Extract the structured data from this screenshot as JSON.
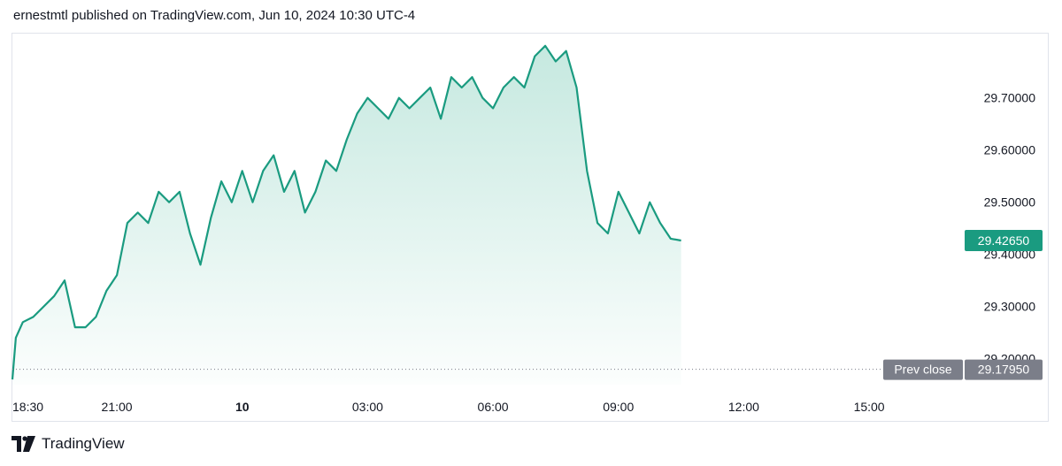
{
  "header": {
    "text": "ernestmtl published on TradingView.com, Jun 10, 2024 10:30 UTC-4"
  },
  "footer": {
    "brand": "TradingView"
  },
  "colors": {
    "line": "#1a9b80",
    "fill_top": "#bfe6dc",
    "price_tag": "#1a9b80",
    "prev_close_tag": "#7b7e89",
    "border": "#e0e3eb"
  },
  "chart_data": {
    "type": "area",
    "x_ticks": [
      "18:30",
      "21:00",
      "10",
      "03:00",
      "06:00",
      "09:00",
      "12:00",
      "15:00"
    ],
    "x_ticks_bold": [
      "10"
    ],
    "y_ticks": [
      "29.70000",
      "29.60000",
      "29.50000",
      "29.40000",
      "29.30000",
      "29.20000"
    ],
    "ylim": [
      29.15,
      29.82
    ],
    "xlim": [
      "18:30",
      "17:00"
    ],
    "current_price": "29.42650",
    "prev_close_label": "Prev close",
    "prev_close_value": "29.17950",
    "series": [
      {
        "x": [
          "18:30",
          "18:35",
          "18:45",
          "19:00",
          "19:15",
          "19:30",
          "19:45",
          "20:00",
          "20:15",
          "20:30",
          "20:45",
          "21:00",
          "21:15",
          "21:30",
          "21:45",
          "22:00",
          "22:15",
          "22:30",
          "22:45",
          "23:00",
          "23:15",
          "23:30",
          "23:45",
          "00:00",
          "00:15",
          "00:30",
          "00:45",
          "01:00",
          "01:15",
          "01:30",
          "01:45",
          "02:00",
          "02:15",
          "02:30",
          "02:45",
          "03:00",
          "03:15",
          "03:30",
          "03:45",
          "04:00",
          "04:15",
          "04:30",
          "04:45",
          "05:00",
          "05:15",
          "05:30",
          "05:45",
          "06:00",
          "06:15",
          "06:30",
          "06:45",
          "07:00",
          "07:15",
          "07:30",
          "07:45",
          "08:00",
          "08:15",
          "08:30",
          "08:45",
          "09:00",
          "09:15",
          "09:30",
          "09:45",
          "10:00",
          "10:15",
          "10:30"
        ],
        "values": [
          29.16,
          29.24,
          29.27,
          29.28,
          29.3,
          29.32,
          29.35,
          29.26,
          29.26,
          29.28,
          29.33,
          29.36,
          29.46,
          29.48,
          29.46,
          29.52,
          29.5,
          29.52,
          29.44,
          29.38,
          29.47,
          29.54,
          29.5,
          29.56,
          29.5,
          29.56,
          29.59,
          29.52,
          29.56,
          29.48,
          29.52,
          29.58,
          29.56,
          29.62,
          29.67,
          29.7,
          29.68,
          29.66,
          29.7,
          29.68,
          29.7,
          29.72,
          29.66,
          29.74,
          29.72,
          29.74,
          29.7,
          29.68,
          29.72,
          29.74,
          29.72,
          29.78,
          29.8,
          29.77,
          29.79,
          29.72,
          29.56,
          29.46,
          29.44,
          29.52,
          29.48,
          29.44,
          29.5,
          29.46,
          29.43,
          29.4265
        ]
      }
    ]
  }
}
